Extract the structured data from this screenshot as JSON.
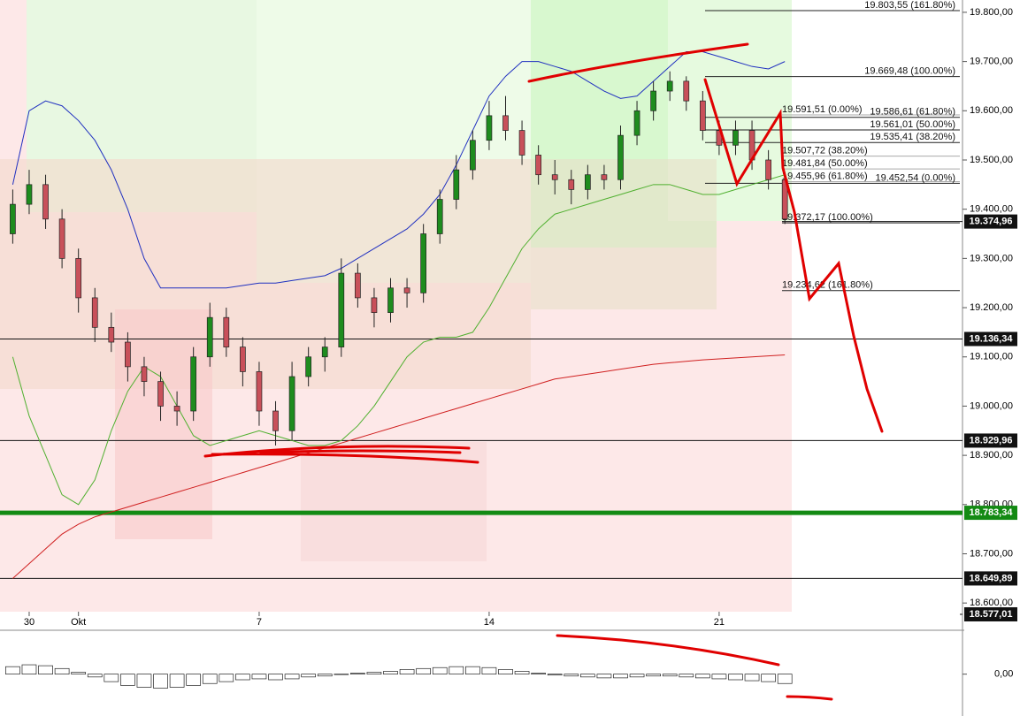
{
  "chart_data": [
    {
      "type": "candlestick",
      "categories": [
        null,
        "30",
        null,
        null,
        "Okt",
        null,
        null,
        null,
        null,
        null,
        null,
        null,
        null,
        null,
        null,
        "7",
        null,
        null,
        null,
        null,
        null,
        null,
        null,
        null,
        null,
        null,
        null,
        null,
        null,
        "14",
        null,
        null,
        null,
        null,
        null,
        null,
        null,
        null,
        null,
        null,
        null,
        null,
        null,
        "21",
        null,
        null,
        null,
        null
      ],
      "open": [
        19350,
        19410,
        19450,
        19380,
        19300,
        19220,
        19160,
        19130,
        19080,
        19050,
        19000,
        18990,
        19100,
        19180,
        19120,
        19070,
        18990,
        18950,
        19060,
        19100,
        19120,
        19270,
        19220,
        19190,
        19240,
        19230,
        19350,
        19420,
        19480,
        19540,
        19590,
        19560,
        19510,
        19470,
        19460,
        19440,
        19470,
        19460,
        19550,
        19600,
        19640,
        19660,
        19620,
        19560,
        19530,
        19560,
        19500,
        19460
      ],
      "high": [
        19440,
        19480,
        19470,
        19400,
        19320,
        19240,
        19190,
        19150,
        19100,
        19070,
        19030,
        19120,
        19210,
        19200,
        19140,
        19090,
        19010,
        19090,
        19120,
        19140,
        19300,
        19290,
        19240,
        19260,
        19260,
        19370,
        19440,
        19510,
        19560,
        19620,
        19630,
        19580,
        19530,
        19500,
        19480,
        19490,
        19490,
        19570,
        19620,
        19660,
        19680,
        19670,
        19640,
        19580,
        19580,
        19580,
        19520,
        19470
      ],
      "low": [
        19330,
        19390,
        19360,
        19280,
        19190,
        19130,
        19110,
        19050,
        19020,
        18970,
        18960,
        18970,
        19080,
        19100,
        19040,
        18960,
        18920,
        18930,
        19040,
        19070,
        19100,
        19200,
        19160,
        19170,
        19200,
        19210,
        19330,
        19400,
        19460,
        19520,
        19540,
        19490,
        19450,
        19430,
        19410,
        19420,
        19440,
        19440,
        19530,
        19580,
        19620,
        19600,
        19540,
        19510,
        19510,
        19480,
        19440,
        19370
      ],
      "close": [
        19410,
        19450,
        19380,
        19300,
        19220,
        19160,
        19130,
        19080,
        19050,
        19000,
        18990,
        19100,
        19180,
        19120,
        19070,
        18990,
        18950,
        19060,
        19100,
        19120,
        19270,
        19220,
        19190,
        19240,
        19230,
        19350,
        19420,
        19480,
        19540,
        19590,
        19560,
        19510,
        19470,
        19460,
        19440,
        19470,
        19460,
        19550,
        19600,
        19640,
        19660,
        19620,
        19560,
        19530,
        19560,
        19500,
        19460,
        19380
      ],
      "up_color": "#1e8c1e",
      "down_color": "#c8505a",
      "overlays": [
        {
          "color": "#2030c0",
          "values": [
            19450,
            19600,
            19620,
            19610,
            19580,
            19540,
            19480,
            19400,
            19300,
            19240,
            19240,
            19240,
            19240,
            19240,
            19245,
            19250,
            19250,
            19255,
            19260,
            19265,
            19280,
            19300,
            19320,
            19340,
            19360,
            19390,
            19430,
            19490,
            19560,
            19630,
            19670,
            19700,
            19700,
            19690,
            19680,
            19660,
            19640,
            19625,
            19630,
            19660,
            19690,
            19720,
            19720,
            19710,
            19700,
            19690,
            19685,
            19700
          ]
        },
        {
          "color": "#50b030",
          "values": [
            19100,
            18980,
            18900,
            18820,
            18800,
            18850,
            18950,
            19030,
            19080,
            19060,
            19000,
            18940,
            18920,
            18930,
            18940,
            18950,
            18940,
            18930,
            18920,
            18920,
            18930,
            18960,
            19000,
            19050,
            19100,
            19130,
            19140,
            19140,
            19150,
            19200,
            19260,
            19320,
            19360,
            19390,
            19400,
            19410,
            19420,
            19430,
            19440,
            19450,
            19450,
            19440,
            19430,
            19430,
            19440,
            19450,
            19460,
            19470
          ]
        },
        {
          "color": "#d02020",
          "values": [
            18650,
            18680,
            18710,
            18740,
            18760,
            18775,
            18785,
            18795,
            18805,
            18815,
            18825,
            18835,
            18845,
            18855,
            18865,
            18875,
            18885,
            18895,
            18905,
            18915,
            18925,
            18935,
            18945,
            18955,
            18965,
            18975,
            18985,
            18995,
            19005,
            19015,
            19025,
            19035,
            19045,
            19055,
            19060,
            19065,
            19070,
            19075,
            19080,
            19085,
            19088,
            19091,
            19094,
            19096,
            19098,
            19100,
            19102,
            19104
          ]
        }
      ],
      "ylim": [
        18568,
        19825
      ],
      "yticks": [
        {
          "value": 18600,
          "label": "18.600,00"
        },
        {
          "value": 18700,
          "label": "18.700,00"
        },
        {
          "value": 18800,
          "label": "18.800,00"
        },
        {
          "value": 18900,
          "label": "18.900,00"
        },
        {
          "value": 19000,
          "label": "19.000,00"
        },
        {
          "value": 19100,
          "label": "19.100,00"
        },
        {
          "value": 19200,
          "label": "19.200,00"
        },
        {
          "value": 19300,
          "label": "19.300,00"
        },
        {
          "value": 19400,
          "label": "19.400,00"
        },
        {
          "value": 19500,
          "label": "19.500,00"
        },
        {
          "value": 19600,
          "label": "19.600,00"
        },
        {
          "value": 19700,
          "label": "19.700,00"
        },
        {
          "value": 19800,
          "label": "19.800,00"
        }
      ],
      "price_levels": [
        {
          "value": 19374.96,
          "label": "19.374,96"
        },
        {
          "value": 19136.34,
          "label": "19.136,34"
        },
        {
          "value": 18929.96,
          "label": "18.929,96"
        },
        {
          "value": 18783.34,
          "label": "18.783,34"
        },
        {
          "value": 18649.89,
          "label": "18.649,89"
        },
        {
          "value": 18577.01,
          "label": "18.577,01"
        }
      ],
      "fib_levels": [
        {
          "value": 19803.55,
          "label": "19.803,55 (161.80%)"
        },
        {
          "value": 19669.48,
          "label": "19.669,48 (100.00%)"
        },
        {
          "value": 19591.51,
          "label": "19.591,51 (0.00%)"
        },
        {
          "value": 19586.61,
          "label": "19.586,61 (61.80%)"
        },
        {
          "value": 19561.01,
          "label": "19.561,01 (50.00%)"
        },
        {
          "value": 19535.41,
          "label": "19.535,41 (38.20%)"
        },
        {
          "value": 19507.72,
          "label": "19.507,72 (38.20%)"
        },
        {
          "value": 19481.84,
          "label": "19.481,84 (50.00%)"
        },
        {
          "value": 19455.96,
          "label": "19.455,96 (61.80%)"
        },
        {
          "value": 19452.54,
          "label": "19.452,54 (0.00%)"
        },
        {
          "value": 19372.17,
          "label": "19.372,17 (100.00%)"
        },
        {
          "value": 19234.62,
          "label": "19.234,62 (161.80%)"
        }
      ]
    },
    {
      "type": "bar",
      "color": "#ffffff",
      "values": [
        8,
        10,
        9,
        6,
        2,
        -3,
        -8,
        -12,
        -14,
        -15,
        -14,
        -12,
        -10,
        -8,
        -6,
        -5,
        -6,
        -5,
        -3,
        -2,
        0,
        1,
        2,
        3,
        5,
        6,
        7,
        8,
        8,
        7,
        5,
        3,
        1,
        -1,
        -2,
        -3,
        -4,
        -4,
        -3,
        -2,
        -2,
        -3,
        -4,
        -5,
        -6,
        -7,
        -8,
        -10
      ],
      "ylim": [
        -40,
        45
      ],
      "yticks": [
        {
          "value": 0,
          "label": "0,00"
        }
      ]
    }
  ]
}
